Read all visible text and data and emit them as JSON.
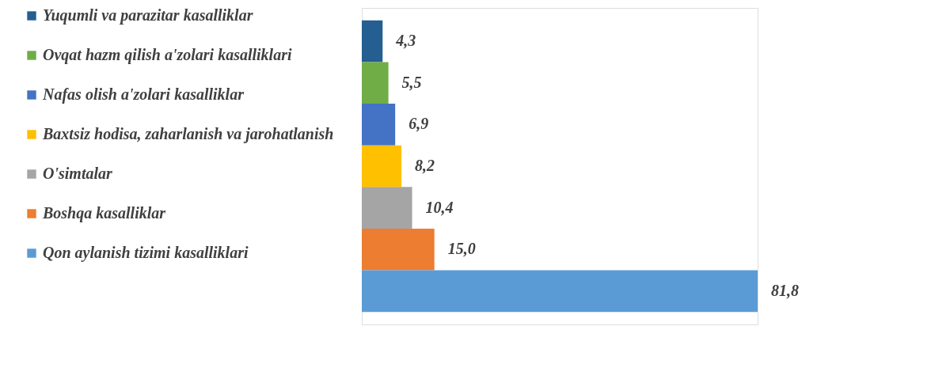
{
  "chart_data": {
    "type": "bar",
    "orientation": "horizontal",
    "stacked": true,
    "categories": [
      null,
      null,
      null,
      null,
      null,
      null,
      null
    ],
    "legend": "left",
    "series": [
      {
        "name": "Yuqumli va parazitar kasalliklar",
        "color": "#255e91",
        "values": [
          4.3,
          null,
          null,
          null,
          null,
          null,
          null
        ],
        "value_labels": [
          "4,3",
          null,
          null,
          null,
          null,
          null,
          null
        ]
      },
      {
        "name": "Ovqat hazm qilish a'zolari kasalliklari",
        "color": "#70ad47",
        "values": [
          null,
          5.5,
          null,
          null,
          null,
          null,
          null
        ],
        "value_labels": [
          null,
          "5,5",
          null,
          null,
          null,
          null,
          null
        ]
      },
      {
        "name": "Nafas olish a'zolari kasalliklar",
        "color": "#4472c4",
        "values": [
          null,
          null,
          6.9,
          null,
          null,
          null,
          null
        ],
        "value_labels": [
          null,
          null,
          "6,9",
          null,
          null,
          null,
          null
        ]
      },
      {
        "name": "Baxtsiz hodisa, zaharlanish va jarohatlanish",
        "color": "#ffc000",
        "values": [
          null,
          null,
          null,
          8.2,
          null,
          null,
          null
        ],
        "value_labels": [
          null,
          null,
          null,
          "8,2",
          null,
          null,
          null
        ]
      },
      {
        "name": "O'simtalar",
        "color": "#a5a5a5",
        "values": [
          null,
          null,
          null,
          null,
          10.4,
          null,
          null
        ],
        "value_labels": [
          null,
          null,
          null,
          null,
          "10,4",
          null,
          null
        ]
      },
      {
        "name": "Boshqa kasalliklar",
        "color": "#ed7d31",
        "values": [
          null,
          null,
          null,
          null,
          null,
          15.0,
          null
        ],
        "value_labels": [
          null,
          null,
          null,
          null,
          null,
          "15,0",
          null
        ]
      },
      {
        "name": "Qon aylanish tizimi kasalliklari",
        "color": "#5b9bd5",
        "values": [
          null,
          null,
          null,
          null,
          null,
          null,
          81.8
        ],
        "value_labels": [
          null,
          null,
          null,
          null,
          null,
          null,
          "81,8"
        ]
      }
    ]
  }
}
